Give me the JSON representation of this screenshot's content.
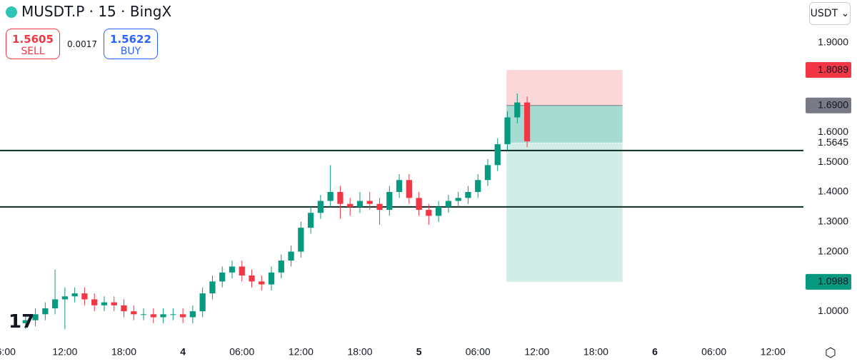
{
  "header": {
    "symbol": "MUSDT.P · 15 · BingX",
    "sell_price": "1.5605",
    "sell_label": "SELL",
    "spread": "0.0017",
    "buy_price": "1.5622",
    "buy_label": "BUY",
    "currency": "USDT"
  },
  "chart_data": {
    "type": "candlestick",
    "x": [
      -16,
      -15,
      -14,
      -13,
      -12,
      -11,
      -10,
      -9,
      -8,
      -7,
      -6,
      -5,
      -4,
      -3,
      -2,
      -1,
      0,
      1,
      2,
      3,
      4,
      5,
      6,
      7,
      8,
      9,
      10,
      11,
      12,
      13,
      14,
      15,
      16,
      17,
      18,
      19,
      20,
      21,
      22,
      23,
      24,
      25,
      26,
      27,
      28,
      29,
      30,
      31,
      32,
      33,
      34,
      35
    ],
    "open": [
      0.96,
      0.97,
      0.99,
      1.01,
      1.04,
      1.05,
      1.06,
      1.04,
      1.02,
      1.03,
      1.02,
      1.0,
      0.99,
      0.99,
      0.98,
      0.99,
      0.99,
      0.98,
      1.0,
      1.06,
      1.1,
      1.13,
      1.15,
      1.12,
      1.1,
      1.09,
      1.13,
      1.17,
      1.2,
      1.28,
      1.33,
      1.37,
      1.4,
      1.36,
      1.35,
      1.37,
      1.36,
      1.34,
      1.4,
      1.44,
      1.38,
      1.34,
      1.32,
      1.35,
      1.37,
      1.38,
      1.4,
      1.44,
      1.49,
      1.56,
      1.65,
      1.7
    ],
    "high": [
      0.99,
      1.01,
      1.03,
      1.14,
      1.08,
      1.08,
      1.08,
      1.06,
      1.05,
      1.05,
      1.04,
      1.02,
      1.01,
      1.01,
      1.01,
      1.01,
      1.01,
      1.02,
      1.08,
      1.12,
      1.15,
      1.17,
      1.17,
      1.14,
      1.12,
      1.15,
      1.19,
      1.22,
      1.3,
      1.35,
      1.39,
      1.49,
      1.42,
      1.38,
      1.4,
      1.4,
      1.38,
      1.42,
      1.46,
      1.46,
      1.4,
      1.36,
      1.37,
      1.39,
      1.4,
      1.42,
      1.46,
      1.51,
      1.58,
      1.67,
      1.73,
      1.72
    ],
    "low": [
      0.94,
      0.95,
      0.97,
      0.99,
      0.94,
      1.03,
      1.02,
      1.0,
      1.0,
      1.0,
      0.98,
      0.97,
      0.97,
      0.96,
      0.96,
      0.97,
      0.96,
      0.96,
      0.98,
      1.04,
      1.08,
      1.11,
      1.1,
      1.08,
      1.07,
      1.07,
      1.11,
      1.15,
      1.18,
      1.26,
      1.31,
      1.35,
      1.31,
      1.32,
      1.33,
      1.34,
      1.29,
      1.32,
      1.38,
      1.36,
      1.32,
      1.29,
      1.3,
      1.33,
      1.35,
      1.36,
      1.38,
      1.42,
      1.47,
      1.54,
      1.63,
      1.55
    ],
    "close": [
      0.97,
      0.99,
      1.01,
      1.04,
      1.05,
      1.06,
      1.04,
      1.02,
      1.03,
      1.02,
      1.0,
      0.99,
      0.99,
      0.98,
      0.99,
      0.99,
      0.98,
      1.0,
      1.06,
      1.1,
      1.13,
      1.15,
      1.12,
      1.1,
      1.09,
      1.13,
      1.17,
      1.2,
      1.28,
      1.33,
      1.37,
      1.4,
      1.36,
      1.35,
      1.37,
      1.36,
      1.34,
      1.4,
      1.44,
      1.38,
      1.34,
      1.32,
      1.35,
      1.37,
      1.38,
      1.4,
      1.44,
      1.49,
      1.56,
      1.65,
      1.7,
      1.57
    ],
    "up_color": "#089981",
    "down_color": "#f23645",
    "xlim": [
      -18.6,
      63.1
    ],
    "xticks": [
      {
        "value": -18,
        "label": "6:00"
      },
      {
        "value": -12,
        "label": "12:00"
      },
      {
        "value": -6,
        "label": "18:00"
      },
      {
        "value": 0,
        "label": "4"
      },
      {
        "value": 6,
        "label": "06:00"
      },
      {
        "value": 12,
        "label": "12:00"
      },
      {
        "value": 18,
        "label": "18:00"
      },
      {
        "value": 24,
        "label": "5"
      },
      {
        "value": 30,
        "label": "06:00"
      },
      {
        "value": 36,
        "label": "12:00"
      },
      {
        "value": 42,
        "label": "18:00"
      },
      {
        "value": 48,
        "label": "6"
      },
      {
        "value": 54,
        "label": "06:00"
      },
      {
        "value": 60,
        "label": "12:00"
      }
    ],
    "ylim": [
      0.919,
      2.0435
    ],
    "yticks": [
      {
        "value": 1.9,
        "label": "1.9000"
      },
      {
        "value": 1.6,
        "label": "1.6000"
      },
      {
        "value": 1.5,
        "label": "1.5000"
      },
      {
        "value": 1.4,
        "label": "1.4000"
      },
      {
        "value": 1.3,
        "label": "1.3000"
      },
      {
        "value": 1.2,
        "label": "1.2000"
      },
      {
        "value": 1.0,
        "label": "1.0000"
      }
    ],
    "levels": [
      1.539,
      1.35
    ],
    "level_color": "#0b2b22",
    "position": {
      "start": 32.9,
      "end": 44.7,
      "entry": {
        "value": 1.69,
        "label": "1.6900"
      },
      "stop": 1.8089,
      "target": 1.0988
    },
    "last_price": 1.5645
  }
}
